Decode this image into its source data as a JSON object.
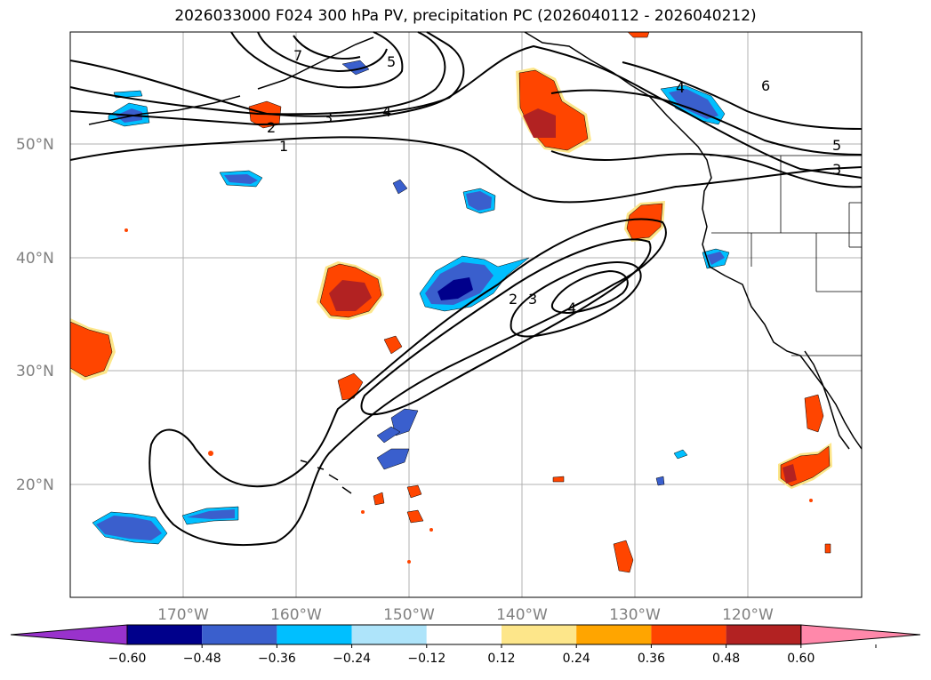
{
  "title": "2026033000 F024 300 hPa PV, precipitation PC (2026040112 - 2026040212)",
  "lat_labels": [
    "50°N",
    "40°N",
    "30°N",
    "20°N"
  ],
  "lon_labels": [
    "170°W",
    "160°W",
    "150°W",
    "140°W",
    "130°W",
    "120°W"
  ],
  "contour_labels": [
    "1",
    "2",
    "3",
    "4",
    "5",
    "6",
    "7",
    "2",
    "3",
    "4",
    "4",
    "5",
    "3"
  ],
  "colorbar": {
    "ticks": [
      "−0.60",
      "−0.48",
      "−0.36",
      "−0.24",
      "−0.12",
      "0.12",
      "0.24",
      "0.36",
      "0.48",
      "0.60"
    ],
    "colors": [
      "#9932cc",
      "#00008b",
      "#3a5fcd",
      "#00bfff",
      "#aee4fa",
      "#ffffff",
      "#fde68a",
      "#ffa500",
      "#ff4500",
      "#b22222",
      "#ff88aa"
    ]
  }
}
